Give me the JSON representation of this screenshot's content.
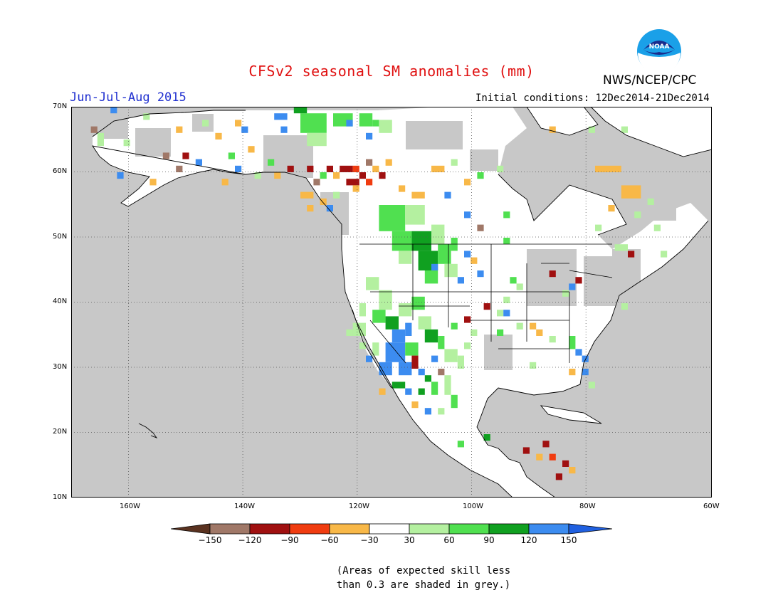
{
  "header": {
    "title": "CFSv2 seasonal SM anomalies (mm)",
    "season": "Jun-Jul-Aug 2015",
    "initial_conditions": "Initial conditions: 12Dec2014-21Dec2014",
    "agency": "NWS/NCEP/CPC",
    "logo_text": "NOAA"
  },
  "map": {
    "lat_labels": [
      "70N",
      "60N",
      "50N",
      "40N",
      "30N",
      "20N",
      "10N"
    ],
    "lon_labels": [
      "160W",
      "140W",
      "120W",
      "100W",
      "80W",
      "60W"
    ],
    "lat_range": [
      10,
      70
    ],
    "lon_range": [
      -172,
      -60
    ],
    "colors": {
      "skill_grey": "#c8c8c8",
      "water_grey": "#c8c8c8",
      "land_white": "#ffffff"
    }
  },
  "colorbar": {
    "labels": [
      "-150",
      "-120",
      "-90",
      "-60",
      "-30",
      "30",
      "60",
      "90",
      "120",
      "150"
    ],
    "colors": [
      "#5a3220",
      "#a07868",
      "#a01010",
      "#f03c10",
      "#f8b848",
      "#ffffff",
      "#b4f0a0",
      "#50e050",
      "#10a020",
      "#3c8cf0",
      "#2060e0"
    ]
  },
  "note": {
    "line1": "(Areas of expected skill less",
    "line2": "than 0.3 are shaded in grey.)"
  }
}
